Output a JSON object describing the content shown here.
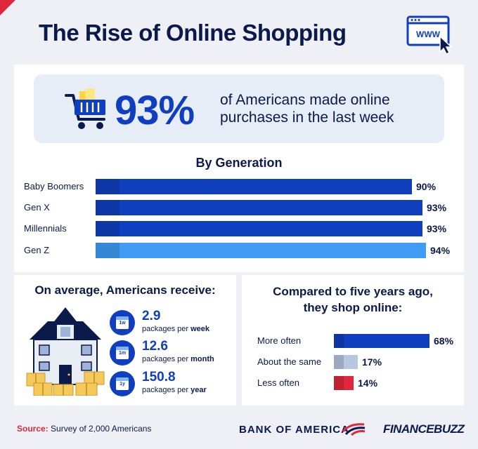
{
  "title": "The Rise of Online Shopping",
  "hero": {
    "percent": "93%",
    "text": "of Americans made online purchases in the last week",
    "icon": "shopping-cart-icon"
  },
  "header_icon": "browser-www-icon",
  "generation": {
    "title": "By Generation",
    "rows": [
      {
        "label": "Baby Boomers",
        "value_label": "90%"
      },
      {
        "label": "Gen X",
        "value_label": "93%"
      },
      {
        "label": "Millennials",
        "value_label": "93%"
      },
      {
        "label": "Gen Z",
        "value_label": "94%"
      }
    ]
  },
  "packages": {
    "title": "On average, Americans receive:",
    "items": [
      {
        "icon_label": "1w",
        "number": "2.9",
        "desc_prefix": "packages per ",
        "desc_unit": "week"
      },
      {
        "icon_label": "1m",
        "number": "12.6",
        "desc_prefix": "packages per ",
        "desc_unit": "month"
      },
      {
        "icon_label": "1y",
        "number": "150.8",
        "desc_prefix": "packages per ",
        "desc_unit": "year"
      }
    ]
  },
  "comparison": {
    "title_line1": "Compared to five years ago,",
    "title_line2": "they shop online:",
    "rows": [
      {
        "label": "More often",
        "value_label": "68%"
      },
      {
        "label": "About the same",
        "value_label": "17%"
      },
      {
        "label": "Less often",
        "value_label": "14%"
      }
    ]
  },
  "footer": {
    "source_label": "Source:",
    "source_text": " Survey of 2,000 Americans",
    "brand1": "BANK OF AMERICA",
    "brand2": "FINANCEBUZZ"
  },
  "colors": {
    "dark_blue": "#0f3ebf",
    "light_blue": "#3f9cf5",
    "gray_blue": "#b6c7e2",
    "red": "#e0273b",
    "navy": "#0a1a4a"
  },
  "chart_data": [
    {
      "type": "bar",
      "orientation": "horizontal",
      "title": "By Generation",
      "categories": [
        "Baby Boomers",
        "Gen X",
        "Millennials",
        "Gen Z"
      ],
      "values": [
        90,
        93,
        93,
        94
      ],
      "unit": "%",
      "colors": [
        "#0f3ebf",
        "#0f3ebf",
        "#0f3ebf",
        "#3f9cf5"
      ]
    },
    {
      "type": "bar",
      "orientation": "horizontal",
      "title": "Compared to five years ago, they shop online:",
      "categories": [
        "More often",
        "About the same",
        "Less often"
      ],
      "values": [
        68,
        17,
        14
      ],
      "unit": "%",
      "colors": [
        "#0f3ebf",
        "#b6c7e2",
        "#e0273b"
      ]
    }
  ]
}
